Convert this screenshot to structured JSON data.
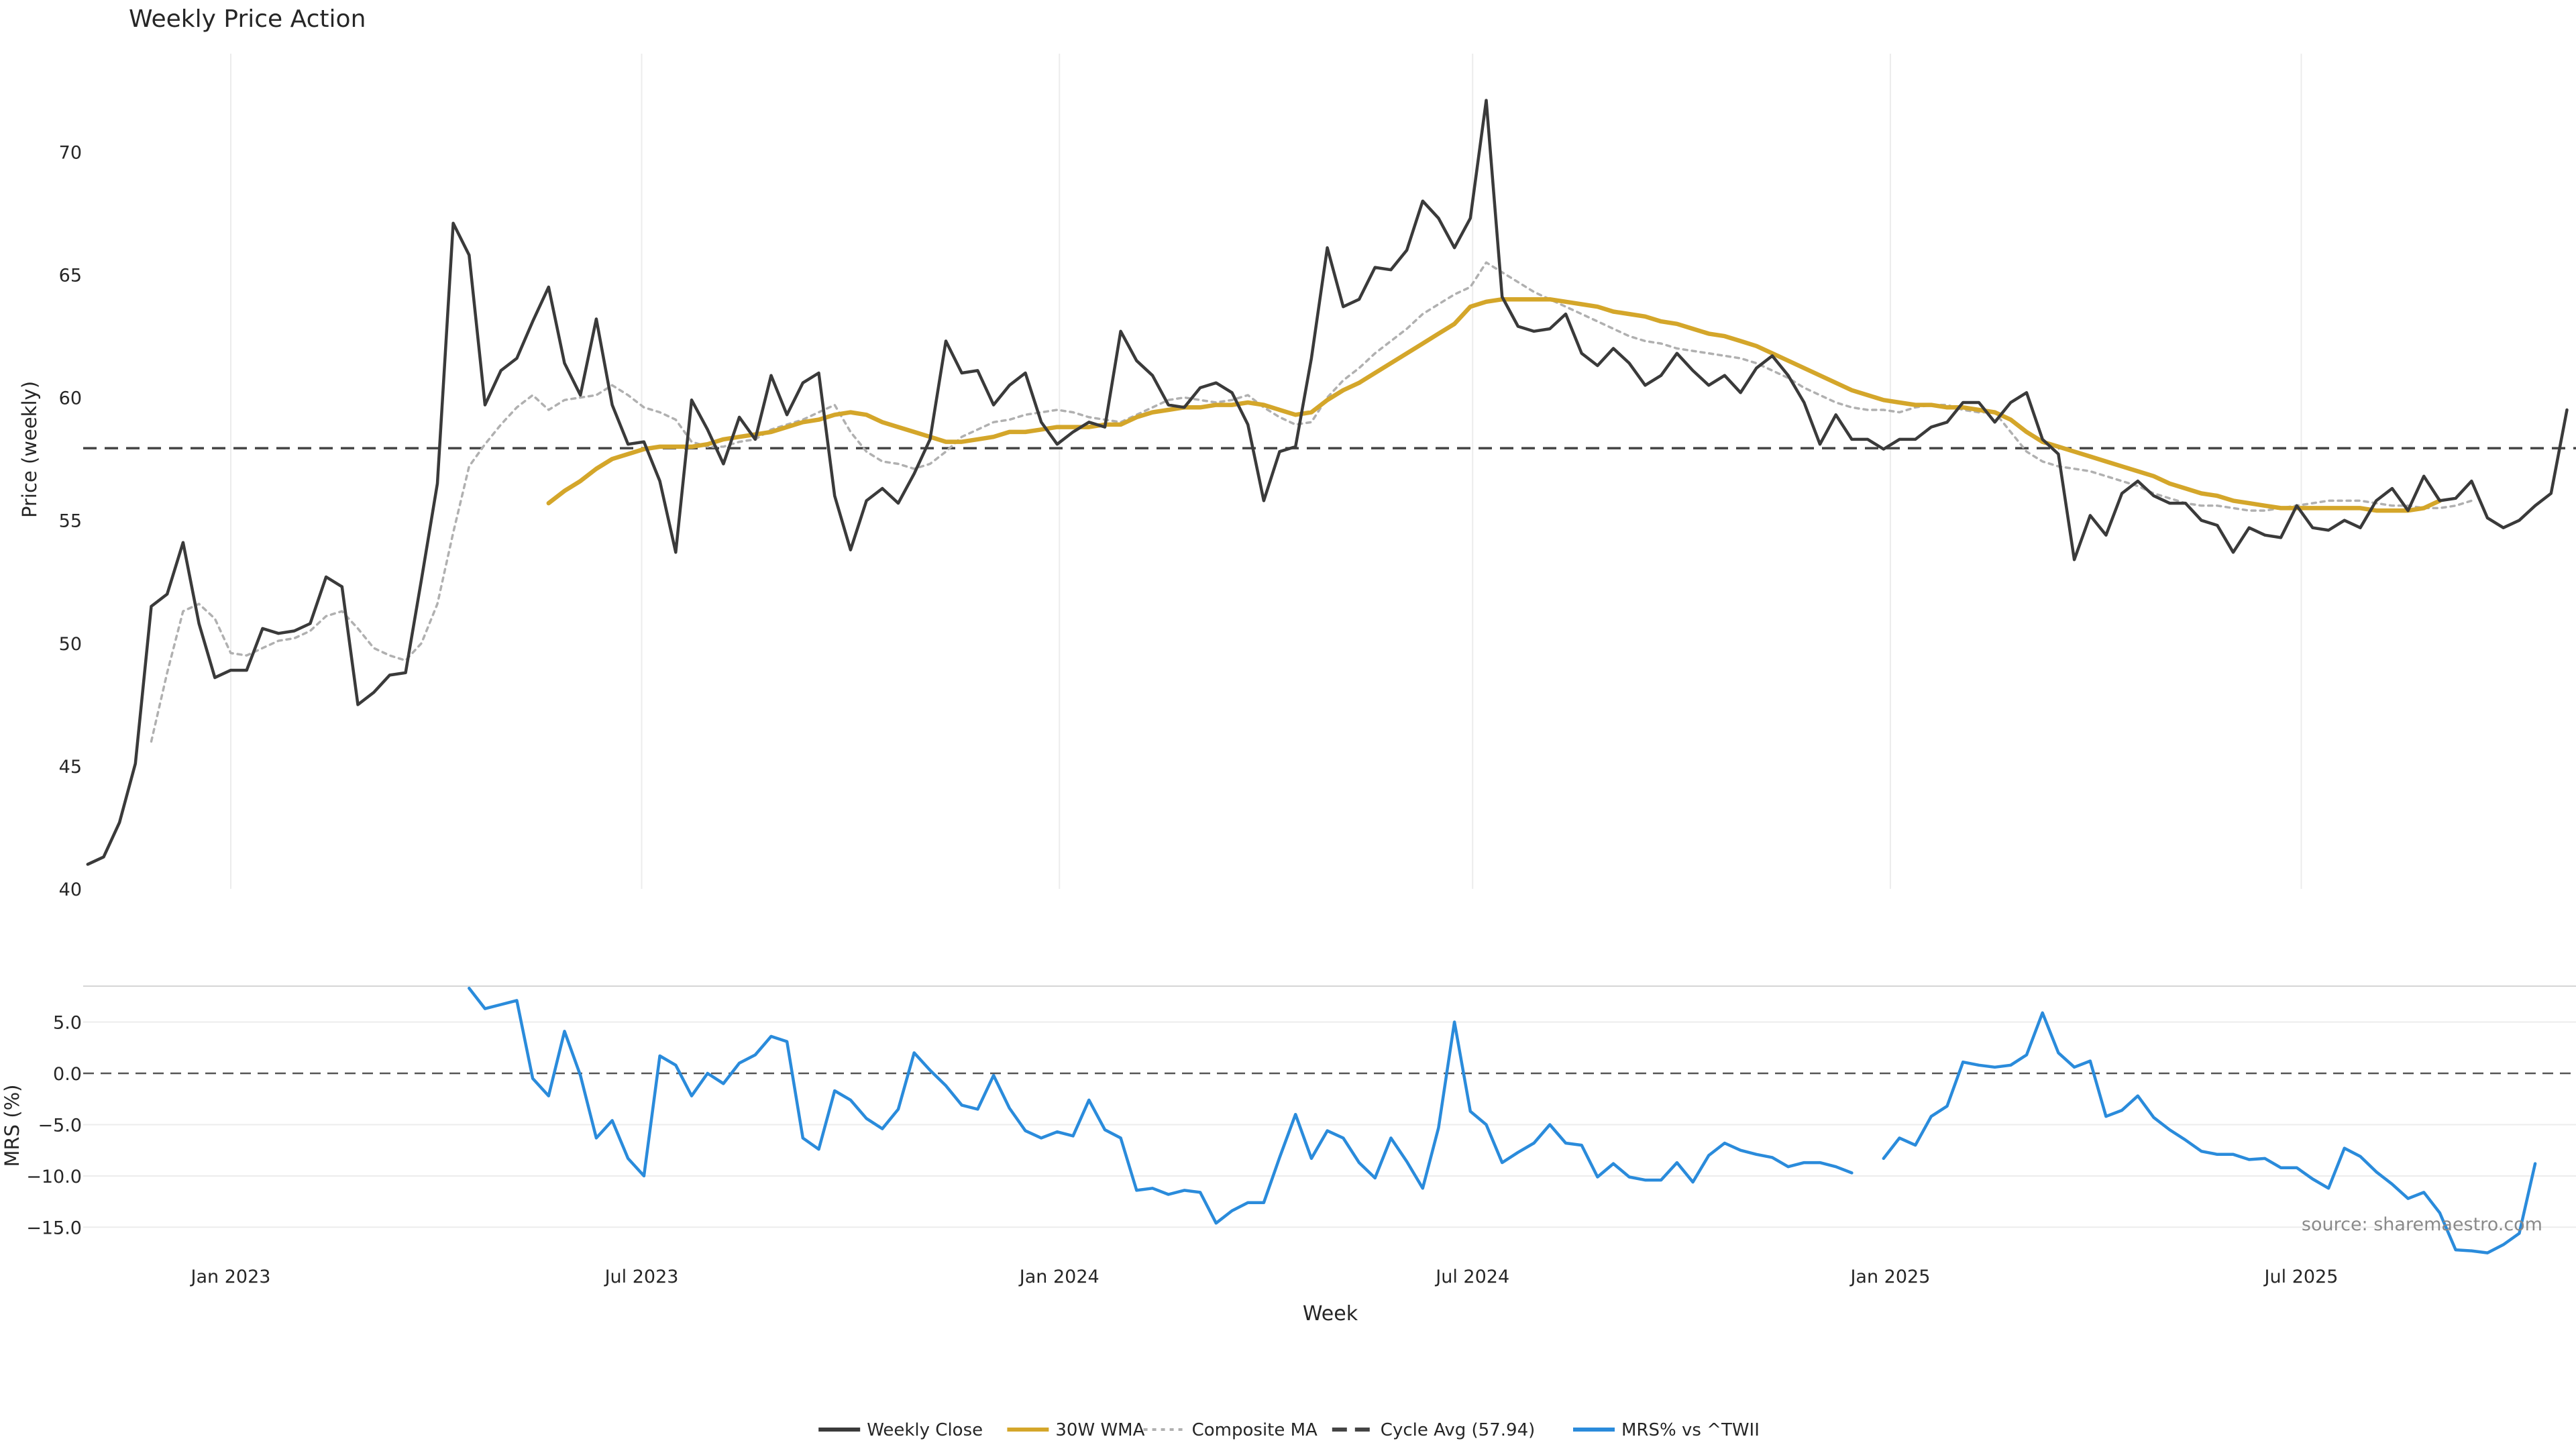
{
  "chart_data": {
    "type": "line",
    "title": "Weekly Price Action",
    "watermark": "source: sharemaestro.com",
    "xlabel": "Week",
    "x_ticks": [
      "Jan 2023",
      "Jul 2023",
      "Jan 2024",
      "Jul 2024",
      "Jan 2025",
      "Jul 2025"
    ],
    "x_tick_dates": [
      "2023-01-01",
      "2023-07-01",
      "2024-01-01",
      "2024-07-01",
      "2025-01-01",
      "2025-07-01"
    ],
    "x_start": "2022-10-30",
    "x_step_days": 7,
    "x_range": [
      "2022-10-28",
      "2025-10-30"
    ],
    "legend_position": "bottom-center",
    "grid": true,
    "price_panel": {
      "ylabel": "Price (weekly)",
      "ylim": [
        40,
        74
      ],
      "y_ticks": [
        40,
        45,
        50,
        55,
        60,
        65,
        70
      ],
      "cycle_avg": 57.94,
      "series": [
        {
          "name": "Weekly Close",
          "color": "#3a3a3a",
          "style": "solid",
          "values": [
            41.0,
            41.3,
            42.7,
            45.1,
            51.5,
            52.0,
            54.1,
            50.8,
            48.6,
            48.9,
            48.9,
            50.6,
            50.4,
            50.5,
            50.8,
            52.7,
            52.3,
            47.5,
            48.0,
            48.7,
            48.8,
            52.6,
            56.5,
            67.1,
            65.8,
            59.7,
            61.1,
            61.6,
            63.1,
            64.5,
            61.4,
            60.1,
            63.2,
            59.7,
            58.1,
            58.2,
            56.6,
            53.7,
            59.9,
            58.7,
            57.3,
            59.2,
            58.3,
            60.9,
            59.3,
            60.6,
            61.0,
            56.0,
            53.8,
            55.8,
            56.3,
            55.7,
            56.9,
            58.3,
            62.3,
            61.0,
            61.1,
            59.7,
            60.5,
            61.0,
            59.0,
            58.1,
            58.6,
            59.0,
            58.8,
            62.7,
            61.5,
            60.9,
            59.7,
            59.6,
            60.4,
            60.6,
            60.2,
            58.9,
            55.8,
            57.8,
            58.0,
            61.6,
            66.1,
            63.7,
            64.0,
            65.3,
            65.2,
            66.0,
            68.0,
            67.3,
            66.1,
            67.3,
            72.1,
            64.1,
            62.9,
            62.7,
            62.8,
            63.4,
            61.8,
            61.3,
            62.0,
            61.4,
            60.5,
            60.9,
            61.8,
            61.1,
            60.5,
            60.9,
            60.2,
            61.2,
            61.7,
            60.9,
            59.8,
            58.1,
            59.3,
            58.3,
            58.3,
            57.9,
            58.3,
            58.3,
            58.8,
            59.0,
            59.8,
            59.8,
            59.0,
            59.8,
            60.2,
            58.3,
            57.7,
            53.4,
            55.2,
            54.4,
            56.1,
            56.6,
            56.0,
            55.7,
            55.7,
            55.0,
            54.8,
            53.7,
            54.7,
            54.4,
            54.3,
            55.6,
            54.7,
            54.6,
            55.0,
            54.7,
            55.8,
            56.3,
            55.4,
            56.8,
            55.8,
            55.9,
            56.6,
            55.1,
            54.7,
            55.0,
            55.6,
            56.1,
            59.5
          ]
        },
        {
          "name": "30W WMA",
          "color": "#d4a62a",
          "style": "solid",
          "start_index": 29,
          "values": [
            55.7,
            56.2,
            56.6,
            57.1,
            57.5,
            57.7,
            57.9,
            58.0,
            58.0,
            58.0,
            58.1,
            58.3,
            58.4,
            58.5,
            58.6,
            58.8,
            59.0,
            59.1,
            59.3,
            59.4,
            59.3,
            59.0,
            58.8,
            58.6,
            58.4,
            58.2,
            58.2,
            58.3,
            58.4,
            58.6,
            58.6,
            58.7,
            58.8,
            58.8,
            58.8,
            58.9,
            58.9,
            59.2,
            59.4,
            59.5,
            59.6,
            59.6,
            59.7,
            59.7,
            59.8,
            59.7,
            59.5,
            59.3,
            59.4,
            59.9,
            60.3,
            60.6,
            61.0,
            61.4,
            61.8,
            62.2,
            62.6,
            63.0,
            63.7,
            63.9,
            64.0,
            64.0,
            64.0,
            64.0,
            63.9,
            63.8,
            63.7,
            63.5,
            63.4,
            63.3,
            63.1,
            63.0,
            62.8,
            62.6,
            62.5,
            62.3,
            62.1,
            61.8,
            61.5,
            61.2,
            60.9,
            60.6,
            60.3,
            60.1,
            59.9,
            59.8,
            59.7,
            59.7,
            59.6,
            59.6,
            59.5,
            59.4,
            59.1,
            58.6,
            58.2,
            58.0,
            57.8,
            57.6,
            57.4,
            57.2,
            57.0,
            56.8,
            56.5,
            56.3,
            56.1,
            56.0,
            55.8,
            55.7,
            55.6,
            55.5,
            55.5,
            55.5,
            55.5,
            55.5,
            55.5,
            55.4,
            55.4,
            55.4,
            55.5,
            55.8
          ]
        },
        {
          "name": "Composite MA",
          "color": "#b0b0b0",
          "style": "dotted",
          "start_index": 4,
          "values": [
            46.0,
            48.8,
            51.3,
            51.6,
            51.0,
            49.6,
            49.5,
            49.8,
            50.1,
            50.2,
            50.5,
            51.1,
            51.3,
            50.6,
            49.8,
            49.5,
            49.3,
            50.0,
            51.6,
            54.5,
            57.2,
            58.1,
            58.9,
            59.6,
            60.1,
            59.5,
            59.9,
            60.0,
            60.1,
            60.5,
            60.1,
            59.6,
            59.4,
            59.1,
            58.2,
            58.0,
            58.0,
            58.2,
            58.3,
            58.7,
            58.9,
            59.1,
            59.4,
            59.7,
            58.6,
            57.8,
            57.4,
            57.3,
            57.1,
            57.3,
            57.8,
            58.4,
            58.7,
            59.0,
            59.1,
            59.3,
            59.4,
            59.5,
            59.4,
            59.2,
            59.1,
            59.0,
            59.3,
            59.6,
            59.9,
            60.0,
            59.9,
            59.8,
            59.9,
            60.1,
            59.6,
            59.2,
            58.9,
            59.0,
            60.0,
            60.7,
            61.2,
            61.8,
            62.3,
            62.8,
            63.4,
            63.8,
            64.2,
            64.5,
            65.5,
            65.1,
            64.7,
            64.3,
            64.0,
            63.7,
            63.4,
            63.1,
            62.8,
            62.5,
            62.3,
            62.2,
            62.0,
            61.9,
            61.8,
            61.7,
            61.6,
            61.4,
            61.1,
            60.8,
            60.4,
            60.1,
            59.8,
            59.6,
            59.5,
            59.5,
            59.4,
            59.6,
            59.7,
            59.7,
            59.5,
            59.4,
            59.4,
            58.6,
            57.8,
            57.4,
            57.2,
            57.1,
            57.0,
            56.8,
            56.6,
            56.4,
            56.1,
            55.9,
            55.7,
            55.6,
            55.6,
            55.5,
            55.4,
            55.4,
            55.5,
            55.6,
            55.7,
            55.8,
            55.8,
            55.8,
            55.7,
            55.6,
            55.6,
            55.5,
            55.5,
            55.6,
            55.8
          ]
        }
      ]
    },
    "mrs_panel": {
      "ylabel": "MRS (%)",
      "ylim": [
        -17,
        8.5
      ],
      "y_ticks": [
        -15.0,
        -10.0,
        -5.0,
        0.0,
        5.0
      ],
      "y_tick_labels": [
        "−15.0",
        "−10.0",
        "−5.0",
        "0.0",
        "5.0"
      ],
      "zero_line": 0,
      "series": [
        {
          "name": "MRS% vs ^TWII",
          "color": "#2a8bdb",
          "style": "solid",
          "start_index": 24,
          "values": [
            8.3,
            6.3,
            6.7,
            7.1,
            -0.5,
            -2.2,
            4.1,
            -0.2,
            -6.3,
            -4.6,
            -8.3,
            -10.0,
            1.7,
            0.8,
            -2.2,
            0.0,
            -1.0,
            1.0,
            1.8,
            3.6,
            3.1,
            -6.3,
            -7.4,
            -1.7,
            -2.6,
            -4.4,
            -5.4,
            -3.5,
            2.0,
            0.3,
            -1.2,
            -3.1,
            -3.5,
            -0.2,
            -3.4,
            -5.6,
            -6.3,
            -5.7,
            -6.1,
            -2.6,
            -5.5,
            -6.3,
            -11.4,
            -11.2,
            -11.8,
            -11.4,
            -11.6,
            -14.6,
            -13.4,
            -12.6,
            -12.6,
            -8.2,
            -4.0,
            -8.3,
            -5.6,
            -6.3,
            -8.7,
            -10.2,
            -6.3,
            -8.6,
            -11.2,
            -5.3,
            5.0,
            -3.7,
            -5.0,
            -8.7,
            -7.7,
            -6.8,
            -5.0,
            -6.8,
            -7.0,
            -10.1,
            -8.8,
            -10.1,
            -10.4,
            -10.4,
            -8.7,
            -10.6,
            -8.0,
            -6.8,
            -7.5,
            -7.9,
            -8.2,
            -9.1,
            -8.7,
            -8.7,
            -9.1,
            -9.7,
            null,
            -8.3,
            -6.3,
            -7.0,
            -4.2,
            -3.2,
            1.1,
            0.8,
            0.6,
            0.8,
            1.8,
            5.9,
            2.0,
            0.6,
            1.2,
            -4.2,
            -3.6,
            -2.2,
            -4.3,
            -5.5,
            -6.5,
            -7.6,
            -7.9,
            -7.9,
            -8.4,
            -8.3,
            -9.2,
            -9.2,
            -10.3,
            -11.2,
            -7.3,
            -8.1,
            -9.6,
            -10.8,
            -12.2,
            -11.6,
            -13.6,
            -17.2,
            -17.3,
            -17.5,
            -16.7,
            -15.6,
            -8.8
          ]
        }
      ]
    },
    "legend": {
      "items": [
        {
          "label": "Weekly Close",
          "color": "#3a3a3a",
          "style": "solid"
        },
        {
          "label": "30W WMA",
          "color": "#d4a62a",
          "style": "solid"
        },
        {
          "label": "Composite MA",
          "color": "#b0b0b0",
          "style": "dotted"
        },
        {
          "label": "Cycle Avg (57.94)",
          "color": "#444444",
          "style": "dashed"
        },
        {
          "label": "MRS% vs ^TWII",
          "color": "#2a8bdb",
          "style": "solid"
        }
      ]
    }
  }
}
